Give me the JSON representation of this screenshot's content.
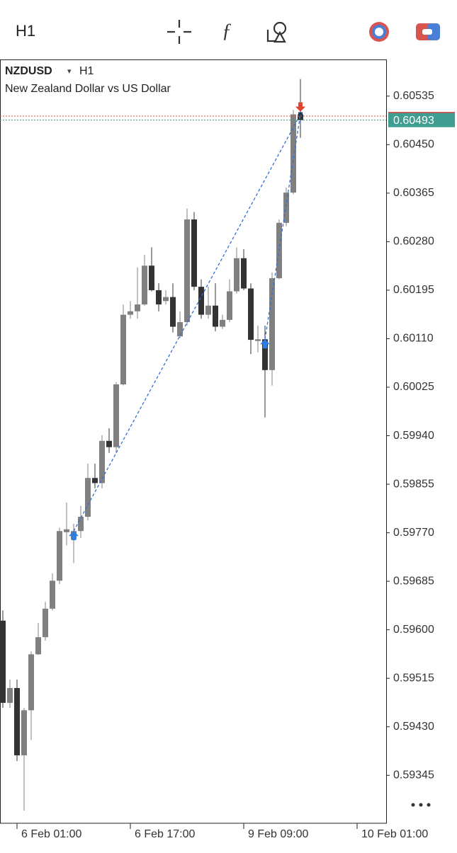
{
  "toolbar": {
    "timeframe": "H1"
  },
  "chart_data": {
    "type": "candlestick",
    "symbol": "NZDUSD",
    "period": "H1",
    "subtitle": "New Zealand Dollar vs US Dollar",
    "open": [
      0.59616,
      0.59472,
      0.59498,
      0.5938,
      0.59459,
      0.59557,
      0.59587,
      0.59637,
      0.59686,
      0.59771,
      0.59758,
      0.59773,
      0.59798,
      0.59866,
      0.59857,
      0.59931,
      0.5992,
      0.6003,
      0.60152,
      0.60158,
      0.6017,
      0.60238,
      0.60195,
      0.60176,
      0.60183,
      0.60114,
      0.60139,
      0.60319,
      0.60201,
      0.60152,
      0.60168,
      0.60131,
      0.60143,
      0.60193,
      0.60251,
      0.60198,
      0.60106,
      0.60109,
      0.60055,
      0.60216,
      0.60313,
      0.60366,
      0.60503
    ],
    "high": [
      0.59634,
      0.59513,
      0.59513,
      0.59463,
      0.59562,
      0.59612,
      0.59649,
      0.59699,
      0.59779,
      0.59823,
      0.59786,
      0.59817,
      0.59891,
      0.59891,
      0.59941,
      0.59953,
      0.60034,
      0.6017,
      0.60176,
      0.60235,
      0.60257,
      0.6027,
      0.60207,
      0.60195,
      0.60207,
      0.60158,
      0.60338,
      0.60332,
      0.60214,
      0.60201,
      0.60207,
      0.60152,
      0.60214,
      0.6027,
      0.60267,
      0.60207,
      0.60133,
      0.60133,
      0.60226,
      0.60319,
      0.60375,
      0.60511,
      0.60565
    ],
    "low": [
      0.59463,
      0.59463,
      0.5937,
      0.59283,
      0.59407,
      0.59556,
      0.59581,
      0.59634,
      0.5968,
      0.59748,
      0.59717,
      0.59761,
      0.59792,
      0.59848,
      0.59848,
      0.5991,
      0.5991,
      0.60028,
      0.60145,
      0.60145,
      0.60168,
      0.60193,
      0.60158,
      0.6017,
      0.60121,
      0.60111,
      0.60133,
      0.60195,
      0.60145,
      0.60145,
      0.60123,
      0.60127,
      0.60139,
      0.60189,
      0.60195,
      0.60083,
      0.60086,
      0.59972,
      0.60028,
      0.60214,
      0.60307,
      0.60363,
      0.60462
    ],
    "close": [
      0.59472,
      0.59498,
      0.5938,
      0.59459,
      0.59557,
      0.59587,
      0.59637,
      0.59686,
      0.59773,
      0.59776,
      0.59773,
      0.59798,
      0.59866,
      0.59857,
      0.59931,
      0.5992,
      0.6003,
      0.60152,
      0.60158,
      0.6017,
      0.60238,
      0.60195,
      0.6017,
      0.60183,
      0.60131,
      0.60139,
      0.60319,
      0.60201,
      0.60152,
      0.60168,
      0.60131,
      0.60143,
      0.60193,
      0.60251,
      0.60198,
      0.60108,
      0.60109,
      0.60055,
      0.60216,
      0.60313,
      0.60366,
      0.60503,
      0.60493
    ],
    "up_color": "#808080",
    "down_color": "#333333",
    "bid": 0.60493,
    "ask": 0.605,
    "bid_color": "#3f9d92",
    "ask_color": "#d9534f",
    "trades": [
      {
        "open_index": 10,
        "open_price": 0.59773,
        "close_index": 42,
        "close_price": 0.60503
      },
      {
        "open_index": 37,
        "open_price": 0.60109,
        "close_index": 42,
        "close_price": 0.60503
      }
    ],
    "xlim": [
      -0.4,
      54.1
    ],
    "xticks": [
      {
        "value": 2,
        "label": "6 Feb 01:00"
      },
      {
        "value": 18,
        "label": "6 Feb 17:00"
      },
      {
        "value": 34,
        "label": "9 Feb 09:00"
      },
      {
        "value": 50,
        "label": "10 Feb 01:00"
      }
    ],
    "ylim": [
      0.59261,
      0.60598
    ],
    "yticks": [
      0.60535,
      {
        "value": 0.6045,
        "label": "0.60450"
      },
      0.60365,
      {
        "value": 0.6028,
        "label": "0.60280"
      },
      0.60195,
      {
        "value": 0.6011,
        "label": "0.60110"
      },
      0.60025,
      {
        "value": 0.5994,
        "label": "0.59940"
      },
      0.59855,
      {
        "value": 0.5977,
        "label": "0.59770"
      },
      0.59685,
      {
        "value": 0.596,
        "label": "0.59600"
      },
      0.59515,
      {
        "value": 0.5943,
        "label": "0.59430"
      },
      0.59345
    ]
  }
}
